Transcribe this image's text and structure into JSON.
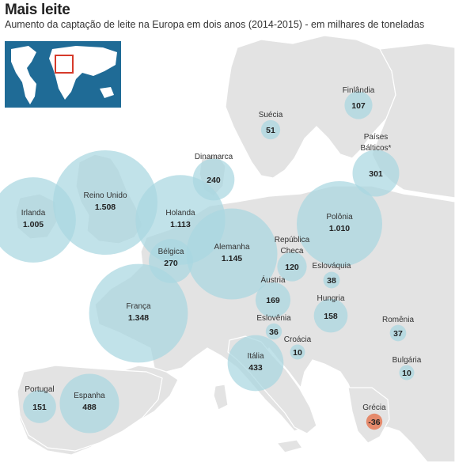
{
  "header": {
    "title": "Mais leite",
    "subtitle": "Aumento da captação de leite na Europa em dois anos (2014-2015) - em milhares de toneladas"
  },
  "colors": {
    "land": "#e3e3e3",
    "land_dark": "#d2d2d2",
    "sea": "#ffffff",
    "bubble_positive": "#a9d7e1",
    "bubble_negative": "#e58a6c",
    "inset_sea": "#1f6b96",
    "inset_land": "#ffffff",
    "inset_marker": "#d63a2a"
  },
  "chart_data": {
    "type": "bubble-map",
    "unit": "milhares de toneladas",
    "period": "2014-2015",
    "countries": [
      {
        "name": "Finlândia",
        "value": 107,
        "value_label": "107"
      },
      {
        "name": "Suécia",
        "value": 51,
        "value_label": "51"
      },
      {
        "name": "Países Bálticos*",
        "value": 301,
        "value_label": "301"
      },
      {
        "name": "Dinamarca",
        "value": 240,
        "value_label": "240"
      },
      {
        "name": "Reino Unido",
        "value": 1508,
        "value_label": "1.508"
      },
      {
        "name": "Irlanda",
        "value": 1005,
        "value_label": "1.005"
      },
      {
        "name": "Holanda",
        "value": 1113,
        "value_label": "1.113"
      },
      {
        "name": "Polônia",
        "value": 1010,
        "value_label": "1.010"
      },
      {
        "name": "Alemanha",
        "value": 1145,
        "value_label": "1.145"
      },
      {
        "name": "Bélgica",
        "value": 270,
        "value_label": "270"
      },
      {
        "name": "República Checa",
        "value": 120,
        "value_label": "120"
      },
      {
        "name": "Eslováquia",
        "value": 38,
        "value_label": "38"
      },
      {
        "name": "Áustria",
        "value": 169,
        "value_label": "169"
      },
      {
        "name": "França",
        "value": 1348,
        "value_label": "1.348"
      },
      {
        "name": "Hungria",
        "value": 158,
        "value_label": "158"
      },
      {
        "name": "Eslovênia",
        "value": 36,
        "value_label": "36"
      },
      {
        "name": "Croácia",
        "value": 10,
        "value_label": "10"
      },
      {
        "name": "Romênia",
        "value": 37,
        "value_label": "37"
      },
      {
        "name": "Itália",
        "value": 433,
        "value_label": "433"
      },
      {
        "name": "Bulgária",
        "value": 10,
        "value_label": "10"
      },
      {
        "name": "Portugal",
        "value": 151,
        "value_label": "151"
      },
      {
        "name": "Espanha",
        "value": 488,
        "value_label": "488"
      },
      {
        "name": "Grécia",
        "value": -36,
        "value_label": "-36"
      }
    ]
  }
}
